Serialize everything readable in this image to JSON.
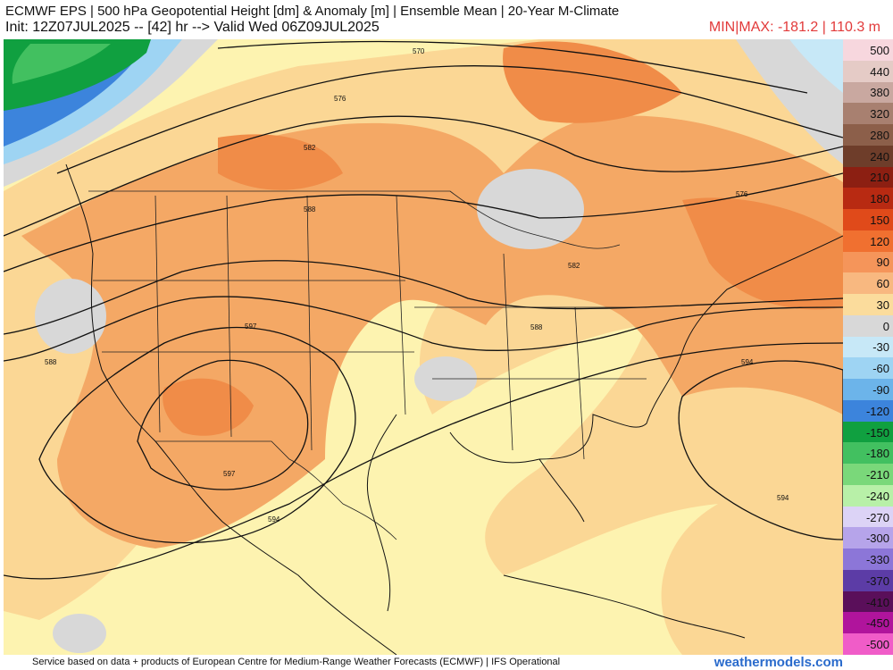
{
  "header": {
    "title_line1": "ECMWF EPS | 500 hPa Geopotential Height [dm] & Anomaly [m] | Ensemble Mean | 20-Year M-Climate",
    "title_line2": "Init: 12Z07JUL2025 -- [42] hr --> Valid Wed 06Z09JUL2025",
    "minmax": "MIN|MAX: -181.2 | 110.3 m"
  },
  "footer": {
    "credit": "Service based on data + products of European Centre for Medium-Range Weather Forecasts (ECMWF) | IFS Operational",
    "brand": "weathermodels.com"
  },
  "contour_labels": {
    "c570": "570",
    "c576a": "576",
    "c576b": "576",
    "c582a": "582",
    "c582b": "582",
    "c588a": "588",
    "c588b": "588",
    "c588c": "588",
    "c594a": "594",
    "c594b": "594",
    "c594c": "594",
    "c597a": "597",
    "c597b": "597"
  },
  "colorbar": {
    "labels": [
      "500",
      "440",
      "380",
      "320",
      "280",
      "240",
      "210",
      "180",
      "150",
      "120",
      "90",
      "60",
      "30",
      "0",
      "-30",
      "-60",
      "-90",
      "-120",
      "-150",
      "-180",
      "-210",
      "-240",
      "-270",
      "-300",
      "-330",
      "-370",
      "-410",
      "-450",
      "-500"
    ],
    "colors": [
      "#f7d7de",
      "#e5cbc6",
      "#c9a8a0",
      "#a88070",
      "#8c5f4a",
      "#6e3d2a",
      "#8c1f12",
      "#b82a12",
      "#e04a1a",
      "#f07030",
      "#f5955a",
      "#f8b880",
      "#fbdc9c",
      "#d8d8d8",
      "#c7e8f7",
      "#9ed4f3",
      "#6cb4ea",
      "#3c84dc",
      "#10a040",
      "#42c060",
      "#7ad87a",
      "#b8f0a8",
      "#dcd3f6",
      "#b6a4ea",
      "#8c76d8",
      "#5c3ca6",
      "#5a0f5a",
      "#b0149c",
      "#f05cc8"
    ]
  }
}
